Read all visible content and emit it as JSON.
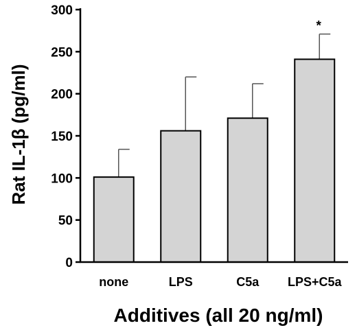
{
  "chart_data": {
    "type": "bar",
    "categories": [
      "none",
      "LPS",
      "C5a",
      "LPS+C5a"
    ],
    "values": [
      101,
      156,
      171,
      241
    ],
    "error_upper": [
      134,
      220,
      212,
      271
    ],
    "annotations": [
      "",
      "",
      "",
      "*"
    ],
    "ylabel": "Rat IL-1β (pg/ml)",
    "xlabel": "Additives (all 20 ng/ml)",
    "ylim": [
      0,
      300
    ],
    "yticks": [
      0,
      50,
      100,
      150,
      200,
      250,
      300
    ],
    "grid": false,
    "bar_color": "#d4d4d4",
    "edge_color": "#000000"
  }
}
